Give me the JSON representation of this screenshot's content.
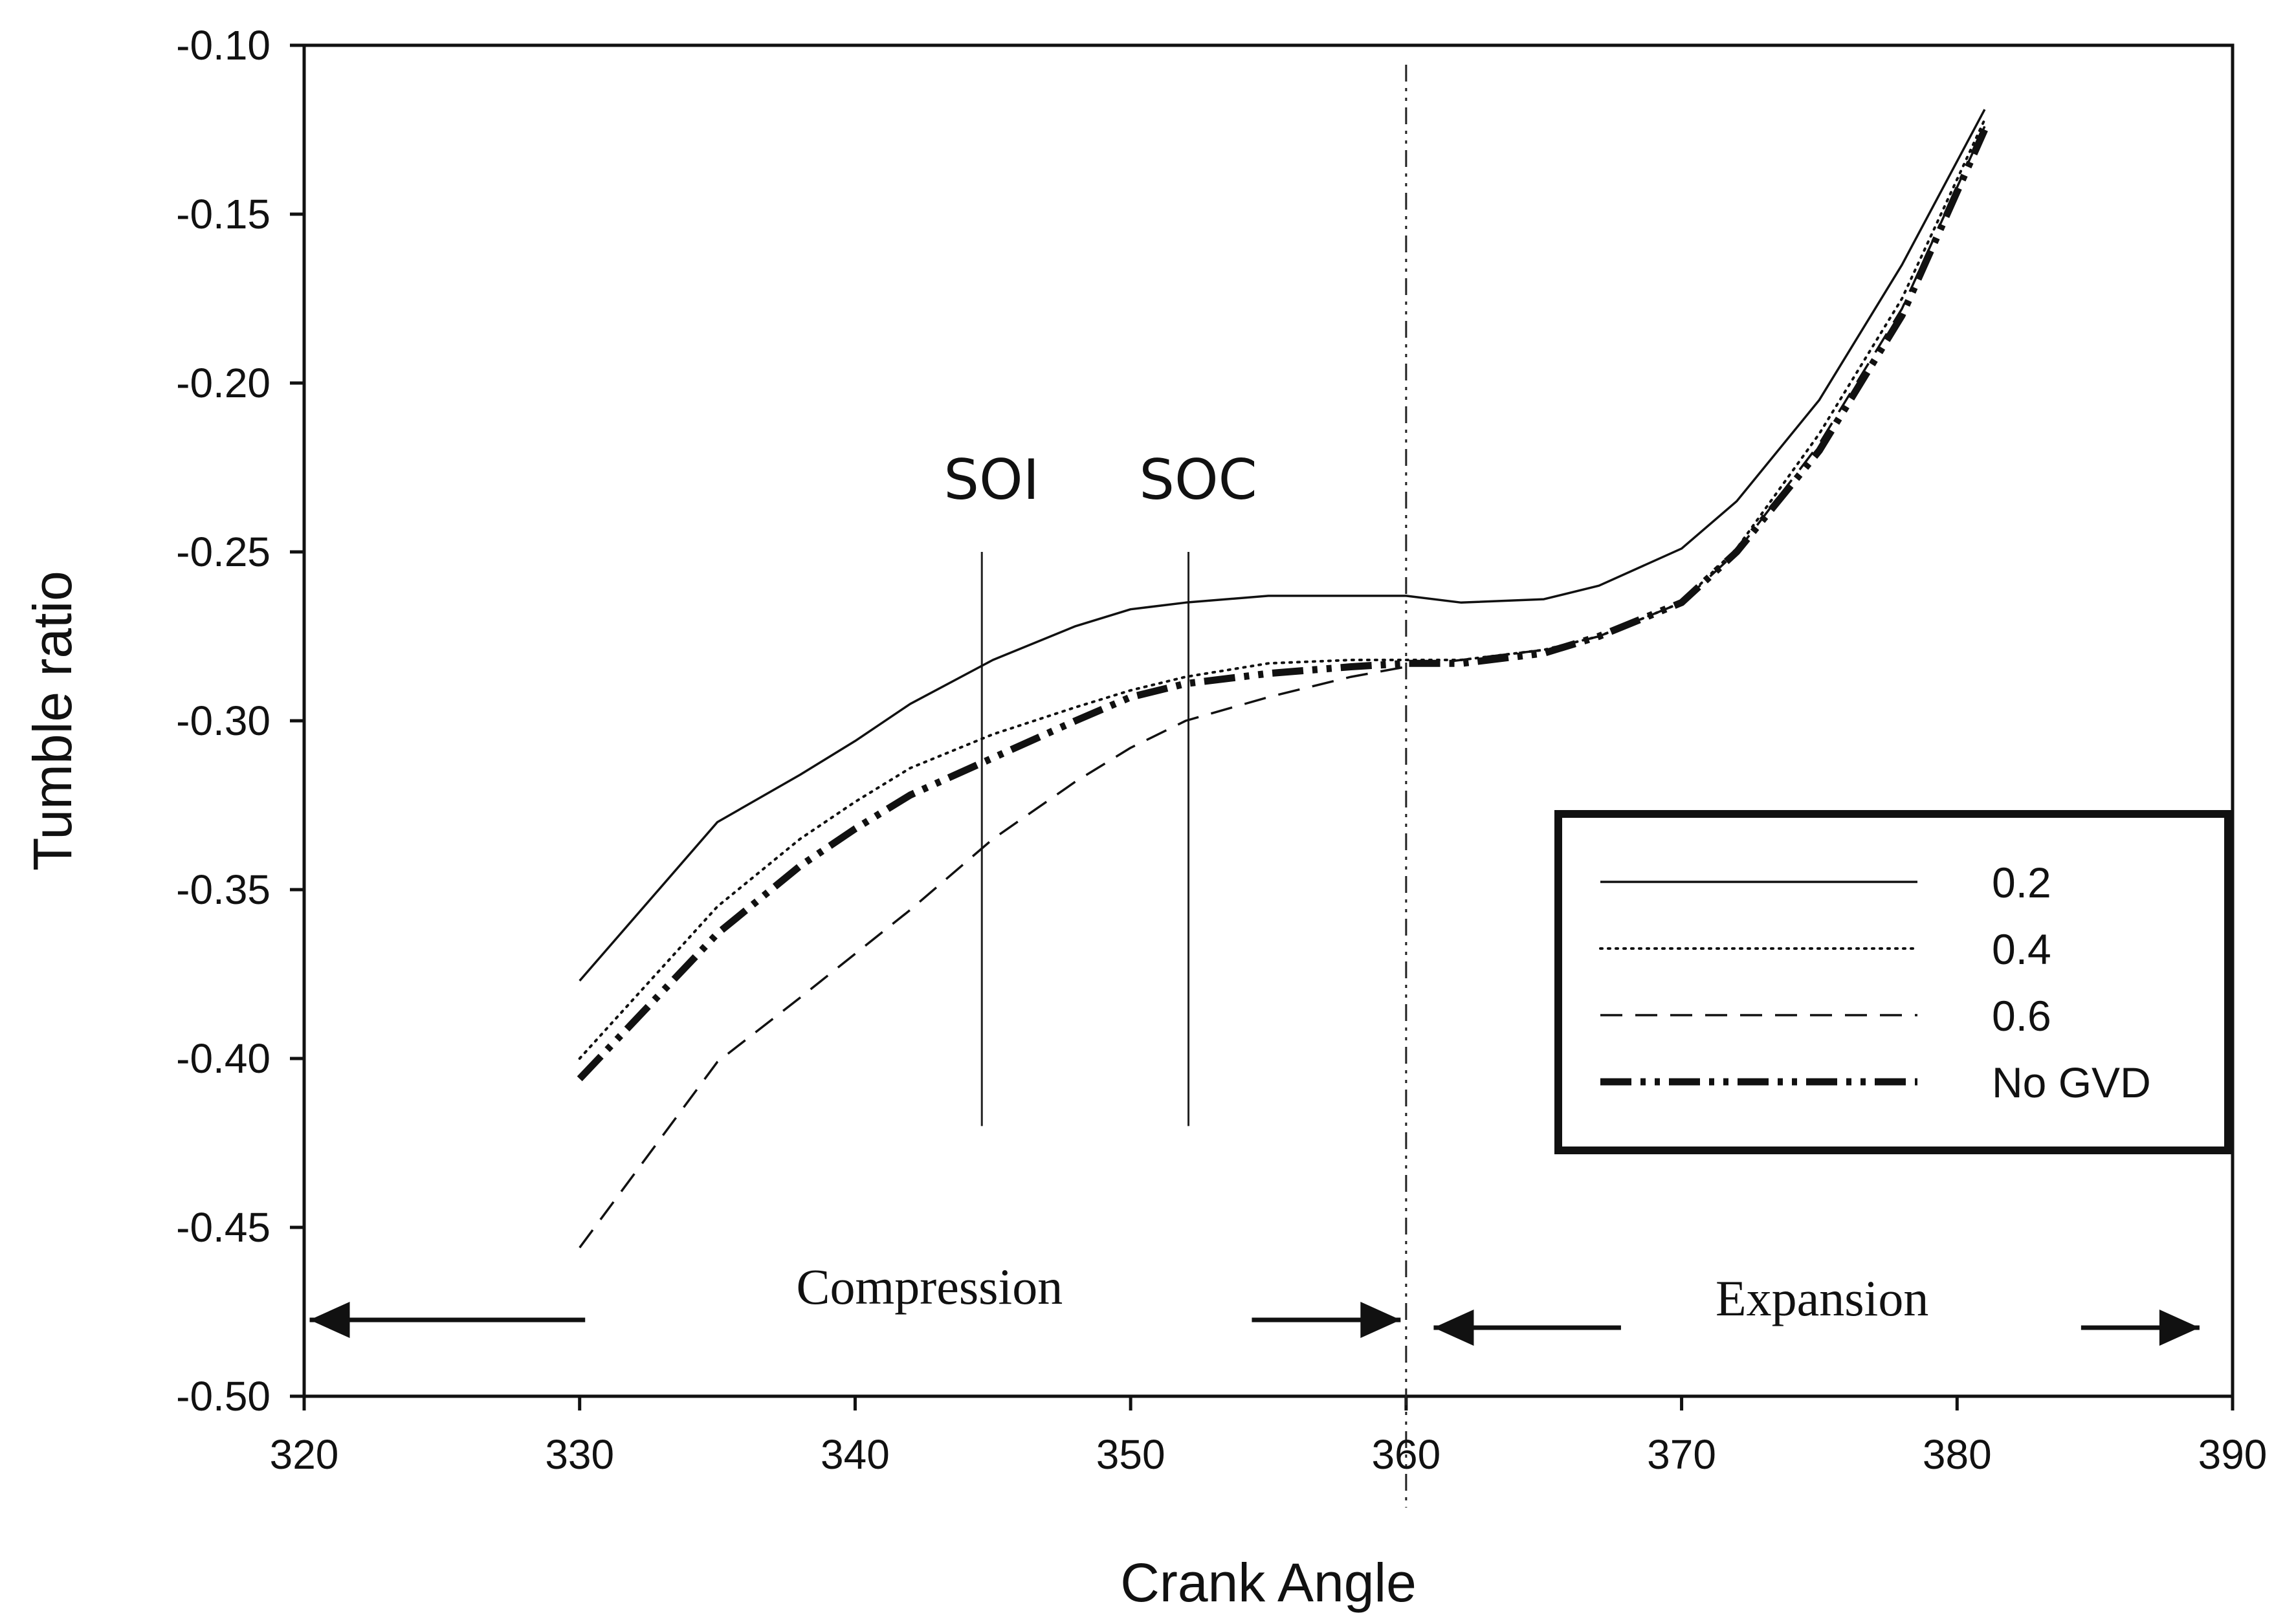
{
  "chart_data": {
    "type": "line",
    "xlabel": "Crank Angle",
    "ylabel": "Tumble ratio",
    "xlim": [
      320,
      390
    ],
    "ylim": [
      -0.5,
      -0.1
    ],
    "xticks": [
      "320",
      "330",
      "340",
      "350",
      "360",
      "370",
      "380",
      "390"
    ],
    "yticks": [
      "-0.10",
      "-0.15",
      "-0.20",
      "-0.25",
      "-0.30",
      "-0.35",
      "-0.40",
      "-0.45",
      "-0.50"
    ],
    "grid": false,
    "legend_position": "right",
    "series": [
      {
        "name": "0.2",
        "style": "solid",
        "x": [
          330,
          335,
          338,
          340,
          342,
          345,
          348,
          350,
          352,
          355,
          358,
          360,
          362,
          365,
          367,
          370,
          372,
          375,
          378,
          381
        ],
        "y": [
          -0.377,
          -0.33,
          -0.316,
          -0.306,
          -0.295,
          -0.282,
          -0.272,
          -0.267,
          -0.265,
          -0.263,
          -0.263,
          -0.263,
          -0.265,
          -0.264,
          -0.26,
          -0.249,
          -0.235,
          -0.205,
          -0.165,
          -0.119
        ]
      },
      {
        "name": "0.4",
        "style": "dotted",
        "x": [
          330,
          335,
          338,
          340,
          342,
          345,
          348,
          350,
          352,
          355,
          358,
          360,
          362,
          365,
          367,
          370,
          372,
          375,
          378,
          381
        ],
        "y": [
          -0.4,
          -0.355,
          -0.335,
          -0.324,
          -0.314,
          -0.304,
          -0.296,
          -0.291,
          -0.287,
          -0.283,
          -0.282,
          -0.282,
          -0.282,
          -0.279,
          -0.275,
          -0.265,
          -0.249,
          -0.215,
          -0.175,
          -0.122
        ]
      },
      {
        "name": "0.6",
        "style": "dashed",
        "x": [
          330,
          335,
          338,
          340,
          342,
          345,
          348,
          350,
          352,
          355,
          358,
          360,
          362,
          365,
          367,
          370,
          372,
          375,
          378,
          381
        ],
        "y": [
          -0.456,
          -0.401,
          -0.382,
          -0.369,
          -0.356,
          -0.335,
          -0.318,
          -0.308,
          -0.3,
          -0.293,
          -0.287,
          -0.284,
          -0.282,
          -0.279,
          -0.275,
          -0.265,
          -0.25,
          -0.218,
          -0.178,
          -0.124
        ]
      },
      {
        "name": "No GVD",
        "style": "thick-dash-dot-dot",
        "x": [
          330,
          335,
          338,
          340,
          342,
          345,
          348,
          350,
          352,
          355,
          358,
          360,
          362,
          365,
          367,
          370,
          372,
          375,
          378,
          381
        ],
        "y": [
          -0.406,
          -0.363,
          -0.343,
          -0.332,
          -0.322,
          -0.311,
          -0.3,
          -0.293,
          -0.289,
          -0.286,
          -0.284,
          -0.283,
          -0.283,
          -0.28,
          -0.275,
          -0.265,
          -0.25,
          -0.22,
          -0.18,
          -0.125
        ]
      }
    ],
    "annotations": [
      {
        "label": "SOI",
        "x": 344.6,
        "y_from": -0.42,
        "y_to": -0.25
      },
      {
        "label": "SOC",
        "x": 352.1,
        "y_from": -0.42,
        "y_to": -0.25
      }
    ],
    "reference_line": {
      "x": 360,
      "style": "dash-dot"
    },
    "phases": [
      {
        "label": "Compression",
        "x_from": 320,
        "x_to": 360
      },
      {
        "label": "Expansion",
        "x_from": 360,
        "x_to": 389
      }
    ]
  }
}
